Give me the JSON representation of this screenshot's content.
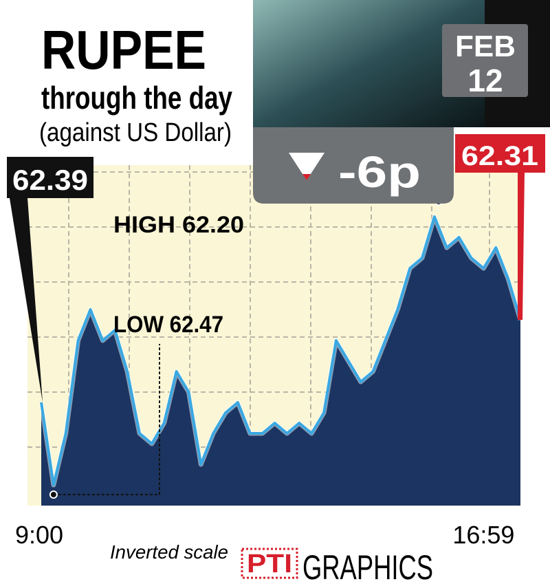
{
  "chart_data": {
    "type": "area",
    "title": "RUPEE",
    "subtitle": "through the day",
    "note": "(against US Dollar)",
    "date_month": "FEB",
    "date_day": "12",
    "change": "-6p",
    "open": 62.39,
    "close": 62.31,
    "high_label": "HIGH 62.20",
    "low_label": "LOW  62.47",
    "scale_note": "Inverted scale",
    "source_logo": "PTI",
    "source": "GRAPHICS",
    "categories": [
      "9:00",
      null,
      null,
      null,
      null,
      null,
      null,
      null,
      null,
      null,
      null,
      null,
      null,
      null,
      null,
      null,
      null,
      null,
      null,
      null,
      null,
      null,
      null,
      null,
      null,
      null,
      null,
      null,
      null,
      null,
      null,
      null,
      null,
      null,
      null,
      null,
      "16:59",
      null,
      null,
      null
    ],
    "series": [
      {
        "color": "#3aa8e2",
        "fill": "#1b3461",
        "values": [
          62.39,
          62.47,
          62.42,
          62.33,
          62.3,
          62.33,
          62.32,
          62.36,
          62.42,
          62.43,
          62.41,
          62.36,
          62.38,
          62.45,
          62.42,
          62.4,
          62.39,
          62.42,
          62.42,
          62.41,
          62.42,
          62.41,
          62.42,
          62.4,
          62.33,
          62.35,
          62.37,
          62.36,
          62.33,
          62.3,
          62.26,
          62.25,
          62.21,
          62.24,
          62.23,
          62.25,
          62.26,
          62.24,
          62.27,
          62.31
        ]
      }
    ],
    "ylim": [
      62.49,
      62.16
    ],
    "inverted": true,
    "grid": true
  }
}
